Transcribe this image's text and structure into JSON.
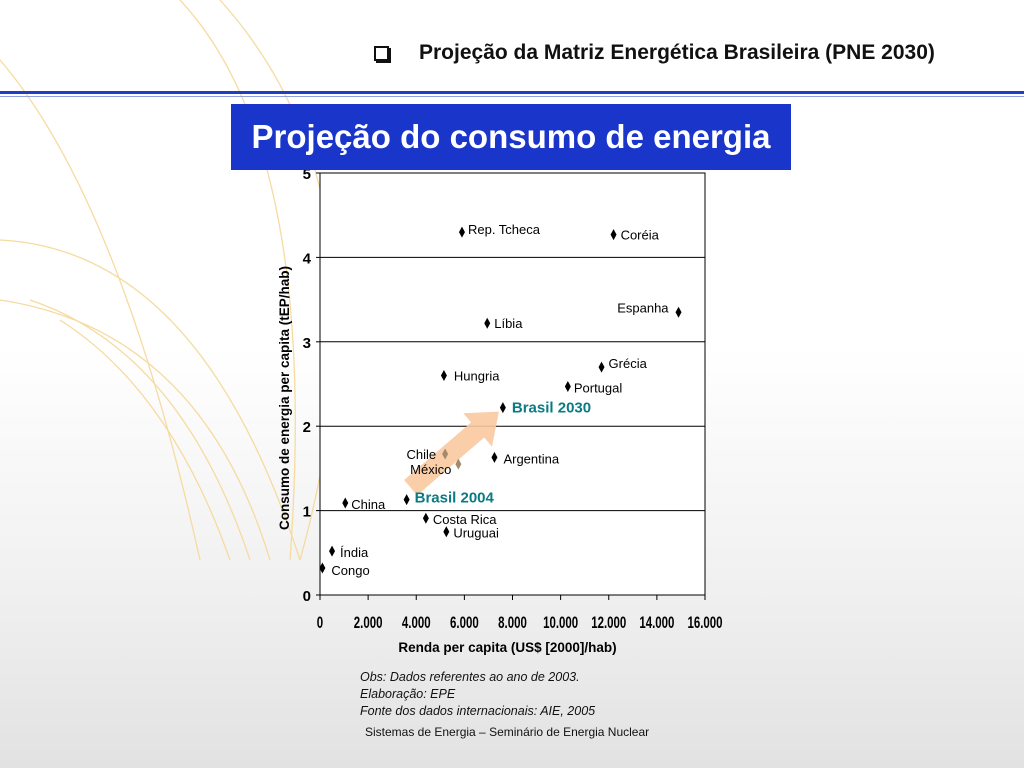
{
  "header": {
    "title": "Projeção da Matriz Energética Brasileira (PNE 2030)"
  },
  "banner": {
    "title": "Projeção do consumo de energia"
  },
  "chart_data": {
    "type": "scatter",
    "xlabel": "Renda per capita (US$ [2000]/hab)",
    "ylabel": "Consumo de energia per capita (tEP/hab)",
    "xlim": [
      0,
      16000
    ],
    "ylim": [
      0,
      5
    ],
    "x_ticks": [
      0,
      2000,
      4000,
      6000,
      8000,
      10000,
      12000,
      14000,
      16000
    ],
    "x_tick_labels": [
      "0",
      "2.000",
      "4.000",
      "6.000",
      "8.000",
      "10.000",
      "12.000",
      "14.000",
      "16.000"
    ],
    "y_ticks": [
      0,
      1,
      2,
      3,
      4,
      5
    ],
    "y_tick_labels": [
      "0",
      "1",
      "2",
      "3",
      "4",
      "5"
    ],
    "grid": "horizontal",
    "marker": "diamond",
    "colors": {
      "marker": "#000000",
      "highlight_label": "#0a7b83",
      "highlight_marker": "#a38a6a",
      "arrow": "#f8c9a0"
    },
    "points": [
      {
        "label": "Rep. Tcheca",
        "x": 5900,
        "y": 4.3
      },
      {
        "label": "Coréia",
        "x": 12200,
        "y": 4.27
      },
      {
        "label": "Espanha",
        "x": 14900,
        "y": 3.35
      },
      {
        "label": "Líbia",
        "x": 6950,
        "y": 3.22
      },
      {
        "label": "Grécia",
        "x": 11700,
        "y": 2.7
      },
      {
        "label": "Hungria",
        "x": 5150,
        "y": 2.6
      },
      {
        "label": "Portugal",
        "x": 10300,
        "y": 2.47
      },
      {
        "label": "Brasil 2030",
        "x": 7600,
        "y": 2.22,
        "highlight": true
      },
      {
        "label": "Chile",
        "x": 5200,
        "y": 1.67,
        "muted": true
      },
      {
        "label": "México",
        "x": 5750,
        "y": 1.55,
        "muted": true
      },
      {
        "label": "Argentina",
        "x": 7250,
        "y": 1.63
      },
      {
        "label": "Brasil 2004",
        "x": 3600,
        "y": 1.13,
        "highlight": true
      },
      {
        "label": "China",
        "x": 1050,
        "y": 1.09
      },
      {
        "label": "Costa Rica",
        "x": 4400,
        "y": 0.91
      },
      {
        "label": "Uruguai",
        "x": 5250,
        "y": 0.75
      },
      {
        "label": "Índia",
        "x": 500,
        "y": 0.52
      },
      {
        "label": "Congo",
        "x": 100,
        "y": 0.32
      }
    ],
    "arrow": {
      "from": "Brasil 2004",
      "to": "Brasil 2030"
    }
  },
  "notes": {
    "line1": "Obs: Dados referentes ao ano de 2003.",
    "line2": "Elaboração: EPE",
    "line3": "Fonte dos dados internacionais: AIE, 2005"
  },
  "footer": {
    "text": "Sistemas de Energia – Seminário de Energia Nuclear"
  }
}
